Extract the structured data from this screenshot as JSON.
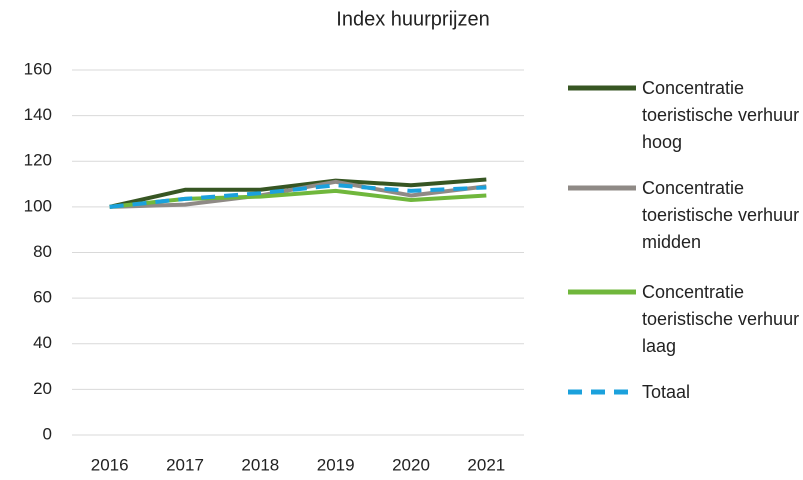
{
  "chart_data": {
    "type": "line",
    "title": "Index huurprijzen",
    "categories": [
      "2016",
      "2017",
      "2018",
      "2019",
      "2020",
      "2021"
    ],
    "series": [
      {
        "name": "Concentratie toeristische verhuur hoog",
        "color": "#375623",
        "values": [
          100,
          107.5,
          107.5,
          111.5,
          109.5,
          112
        ]
      },
      {
        "name": "Concentratie toeristische verhuur midden",
        "color": "#8f8a86",
        "values": [
          100,
          101,
          105,
          111,
          105,
          109
        ]
      },
      {
        "name": "Concentratie toeristische verhuur laag",
        "color": "#70b73c",
        "values": [
          100,
          103.5,
          104.5,
          107,
          103,
          105
        ]
      },
      {
        "name": "Totaal",
        "color": "#1ba1dc",
        "dashed": true,
        "values": [
          100,
          103.5,
          106,
          109.5,
          107,
          108.5
        ]
      }
    ],
    "ylim": [
      0,
      160
    ],
    "yticks": [
      0,
      20,
      40,
      60,
      80,
      100,
      120,
      140,
      160
    ],
    "grid": true,
    "legend": "right"
  }
}
